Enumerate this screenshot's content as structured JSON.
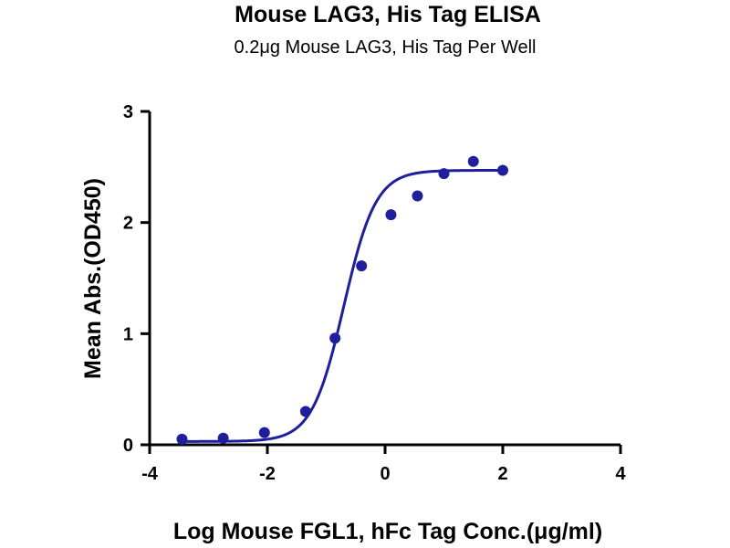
{
  "colors": {
    "series": "#1f1f9e",
    "axis": "#000000"
  },
  "chart_data": {
    "type": "scatter",
    "title": "Mouse LAG3, His Tag ELISA",
    "subtitle": "0.2μg Mouse LAG3, His Tag Per Well",
    "xlabel": "Log Mouse FGL1, hFc Tag Conc.(μg/ml)",
    "ylabel": "Mean Abs.(OD450)",
    "xlim": [
      -4,
      4
    ],
    "ylim": [
      0,
      3
    ],
    "xticks": [
      -4,
      -2,
      0,
      2,
      4
    ],
    "yticks": [
      0,
      1,
      2,
      3
    ],
    "grid": false,
    "series": [
      {
        "points": [
          {
            "x": -3.45,
            "y": 0.05
          },
          {
            "x": -2.75,
            "y": 0.06
          },
          {
            "x": -2.05,
            "y": 0.11
          },
          {
            "x": -1.35,
            "y": 0.3
          },
          {
            "x": -0.85,
            "y": 0.96
          },
          {
            "x": -0.4,
            "y": 1.61
          },
          {
            "x": 0.1,
            "y": 2.07
          },
          {
            "x": 0.55,
            "y": 2.24
          },
          {
            "x": 1.0,
            "y": 2.44
          },
          {
            "x": 1.5,
            "y": 2.55
          },
          {
            "x": 2.0,
            "y": 2.47
          }
        ],
        "fit": {
          "model": "four-parameter logistic",
          "bottom": 0.03,
          "top": 2.47,
          "logEC50": -0.7,
          "hill": 1.6,
          "x_range": [
            -3.45,
            2.0
          ]
        }
      }
    ]
  }
}
